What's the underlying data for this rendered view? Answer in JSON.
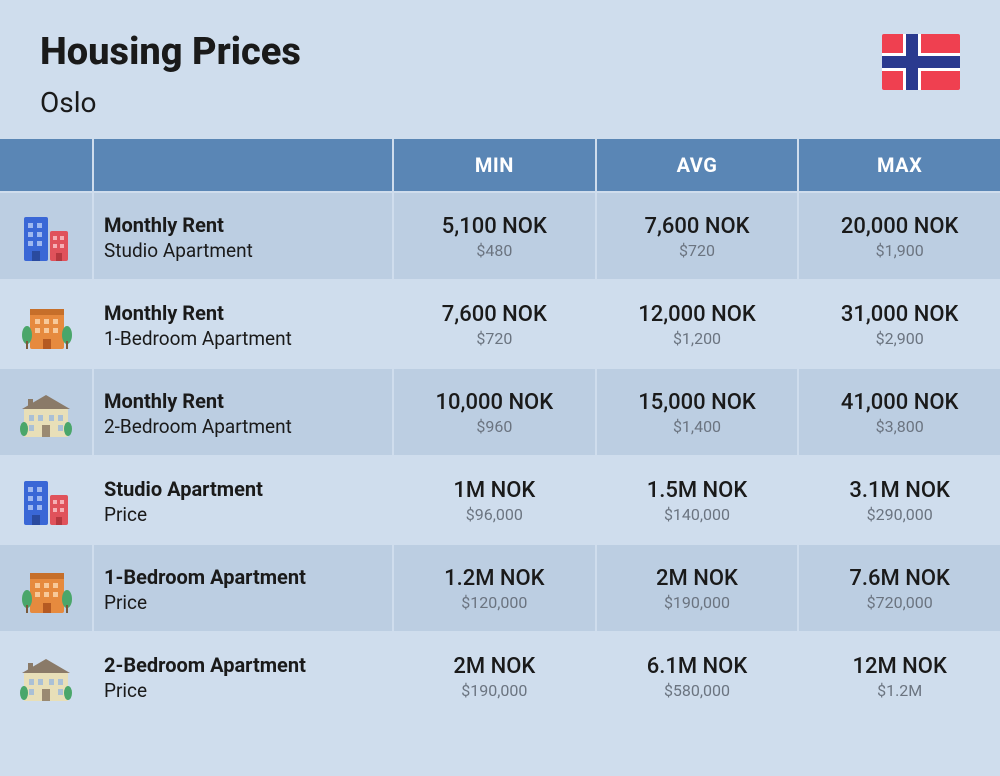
{
  "header": {
    "title": "Housing Prices",
    "city": "Oslo",
    "flag_colors": {
      "red": "#ef4050",
      "blue": "#2a3a8f",
      "white": "#ffffff"
    }
  },
  "columns": {
    "min": "MIN",
    "avg": "AVG",
    "max": "MAX"
  },
  "colors": {
    "page_bg": "#cfdded",
    "header_bg": "#5a86b5",
    "row_odd": "#bccee2",
    "row_even": "#cfdded",
    "text_primary": "#1a1a1a",
    "text_muted": "#6b7480"
  },
  "typography": {
    "title_fontsize": 38,
    "subtitle_fontsize": 28,
    "column_header_fontsize": 20,
    "label_title_fontsize": 20,
    "label_sub_fontsize": 19,
    "value_nok_fontsize": 22,
    "value_usd_fontsize": 16
  },
  "layout": {
    "grid_columns": "92px 298px 1fr 1fr 1fr",
    "row_min_height": 86,
    "gap": 2
  },
  "rows": [
    {
      "icon": "studio",
      "label_title": "Monthly Rent",
      "label_sub": "Studio Apartment",
      "min": {
        "nok": "5,100 NOK",
        "usd": "$480"
      },
      "avg": {
        "nok": "7,600 NOK",
        "usd": "$720"
      },
      "max": {
        "nok": "20,000 NOK",
        "usd": "$1,900"
      }
    },
    {
      "icon": "one_bed",
      "label_title": "Monthly Rent",
      "label_sub": "1-Bedroom Apartment",
      "min": {
        "nok": "7,600 NOK",
        "usd": "$720"
      },
      "avg": {
        "nok": "12,000 NOK",
        "usd": "$1,200"
      },
      "max": {
        "nok": "31,000 NOK",
        "usd": "$2,900"
      }
    },
    {
      "icon": "two_bed",
      "label_title": "Monthly Rent",
      "label_sub": "2-Bedroom Apartment",
      "min": {
        "nok": "10,000 NOK",
        "usd": "$960"
      },
      "avg": {
        "nok": "15,000 NOK",
        "usd": "$1,400"
      },
      "max": {
        "nok": "41,000 NOK",
        "usd": "$3,800"
      }
    },
    {
      "icon": "studio",
      "label_title": "Studio Apartment",
      "label_sub": "Price",
      "min": {
        "nok": "1M NOK",
        "usd": "$96,000"
      },
      "avg": {
        "nok": "1.5M NOK",
        "usd": "$140,000"
      },
      "max": {
        "nok": "3.1M NOK",
        "usd": "$290,000"
      }
    },
    {
      "icon": "one_bed",
      "label_title": "1-Bedroom Apartment",
      "label_sub": "Price",
      "min": {
        "nok": "1.2M NOK",
        "usd": "$120,000"
      },
      "avg": {
        "nok": "2M NOK",
        "usd": "$190,000"
      },
      "max": {
        "nok": "7.6M NOK",
        "usd": "$720,000"
      }
    },
    {
      "icon": "two_bed",
      "label_title": "2-Bedroom Apartment",
      "label_sub": "Price",
      "min": {
        "nok": "2M NOK",
        "usd": "$190,000"
      },
      "avg": {
        "nok": "6.1M NOK",
        "usd": "$580,000"
      },
      "max": {
        "nok": "12M NOK",
        "usd": "$1.2M"
      }
    }
  ],
  "icons": {
    "studio": {
      "type": "two-building",
      "left_color": "#3a67d6",
      "right_color": "#e0525b"
    },
    "one_bed": {
      "type": "mid-rise",
      "body_color": "#e68a3e",
      "tree_color": "#4aa66a"
    },
    "two_bed": {
      "type": "house-wide",
      "body_color": "#e8dfb8",
      "roof_color": "#7a6a5a"
    }
  }
}
